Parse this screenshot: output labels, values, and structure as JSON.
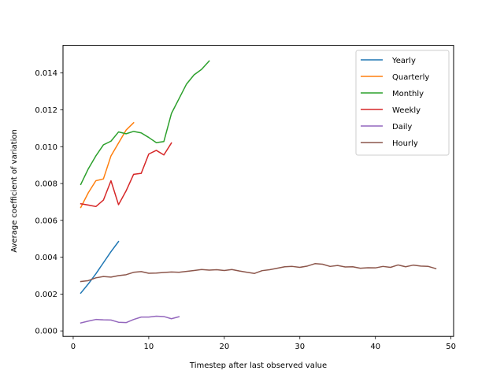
{
  "chart_data": {
    "type": "line",
    "xlabel": "Timestep after last observed value",
    "ylabel": "Average coefficient of variation",
    "xlim": [
      -1.35,
      50.35
    ],
    "ylim": [
      -0.0003,
      0.0155
    ],
    "xticks": [
      0,
      10,
      20,
      30,
      40,
      50
    ],
    "yticks": [
      0.0,
      0.002,
      0.004,
      0.006,
      0.008,
      0.01,
      0.012,
      0.014
    ],
    "ytick_labels": [
      "0.000",
      "0.002",
      "0.004",
      "0.006",
      "0.008",
      "0.010",
      "0.012",
      "0.014"
    ],
    "grid": false,
    "legend_position": "top-right",
    "series": [
      {
        "name": "Yearly",
        "color": "#1f77b4",
        "x": [
          1,
          2,
          3,
          4,
          5,
          6
        ],
        "y": [
          0.00205,
          0.00255,
          0.0031,
          0.0037,
          0.0043,
          0.00485
        ]
      },
      {
        "name": "Quarterly",
        "color": "#ff7f0e",
        "x": [
          1,
          2,
          3,
          4,
          5,
          6,
          7,
          8
        ],
        "y": [
          0.0067,
          0.0075,
          0.00815,
          0.00825,
          0.0095,
          0.0102,
          0.0109,
          0.0113
        ]
      },
      {
        "name": "Monthly",
        "color": "#2ca02c",
        "x": [
          1,
          2,
          3,
          4,
          5,
          6,
          7,
          8,
          9,
          10,
          11,
          12,
          13,
          14,
          15,
          16,
          17,
          18
        ],
        "y": [
          0.00795,
          0.0088,
          0.0095,
          0.0101,
          0.0103,
          0.0108,
          0.0107,
          0.01083,
          0.01075,
          0.0105,
          0.01022,
          0.01028,
          0.0118,
          0.0126,
          0.0134,
          0.0139,
          0.0142,
          0.01465
        ]
      },
      {
        "name": "Weekly",
        "color": "#d62728",
        "x": [
          1,
          2,
          3,
          4,
          5,
          6,
          7,
          8,
          9,
          10,
          11,
          12,
          13
        ],
        "y": [
          0.0069,
          0.00683,
          0.00675,
          0.0071,
          0.00815,
          0.00685,
          0.0076,
          0.0085,
          0.00855,
          0.0096,
          0.0098,
          0.00955,
          0.0102
        ]
      },
      {
        "name": "Daily",
        "color": "#9467bd",
        "x": [
          1,
          2,
          3,
          4,
          5,
          6,
          7,
          8,
          9,
          10,
          11,
          12,
          13,
          14
        ],
        "y": [
          0.00043,
          0.00053,
          0.00062,
          0.0006,
          0.00059,
          0.00047,
          0.00045,
          0.00062,
          0.00075,
          0.00075,
          0.0008,
          0.00078,
          0.00066,
          0.00077
        ]
      },
      {
        "name": "Hourly",
        "color": "#8c564b",
        "x": [
          1,
          2,
          3,
          4,
          5,
          6,
          7,
          8,
          9,
          10,
          11,
          12,
          13,
          14,
          15,
          16,
          17,
          18,
          19,
          20,
          21,
          22,
          23,
          24,
          25,
          26,
          27,
          28,
          29,
          30,
          31,
          32,
          33,
          34,
          35,
          36,
          37,
          38,
          39,
          40,
          41,
          42,
          43,
          44,
          45,
          46,
          47,
          48
        ],
        "y": [
          0.00268,
          0.00273,
          0.00288,
          0.00295,
          0.00292,
          0.003,
          0.00305,
          0.00318,
          0.00322,
          0.00313,
          0.00314,
          0.00317,
          0.0032,
          0.00318,
          0.00323,
          0.00328,
          0.00333,
          0.0033,
          0.00332,
          0.00328,
          0.00333,
          0.00325,
          0.00318,
          0.00312,
          0.00327,
          0.00332,
          0.0034,
          0.00348,
          0.0035,
          0.00345,
          0.00352,
          0.00365,
          0.00362,
          0.0035,
          0.00355,
          0.00347,
          0.00348,
          0.0034,
          0.00343,
          0.00342,
          0.0035,
          0.00345,
          0.00358,
          0.00348,
          0.00357,
          0.00352,
          0.0035,
          0.00338
        ]
      }
    ]
  }
}
